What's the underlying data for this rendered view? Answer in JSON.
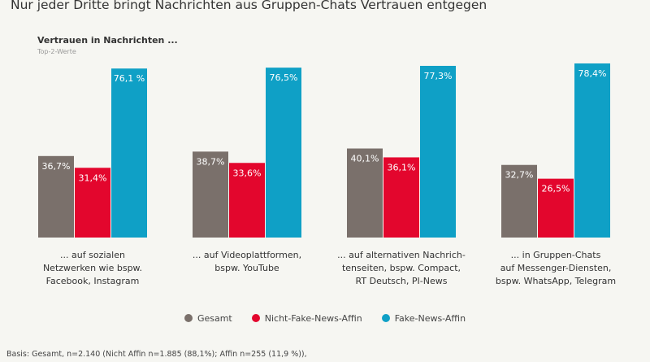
{
  "title": "Nur jeder Dritte bringt Nachrichten aus Gruppen-Chats Vertrauen entgegen",
  "chart_data": {
    "type": "bar",
    "title": "Vertrauen in Nachrichten ...",
    "subtitle": "Top-2-Werte",
    "categories": [
      "... auf sozialen\nNetzwerken wie bspw.\nFacebook, Instagram",
      "... auf Videoplattformen,\nbspw. YouTube",
      "... auf alternativen Nachrich-\ntenseiten, bspw. Compact,\nRT Deutsch, PI-News",
      "... in Gruppen-Chats\nauf Messenger-Diensten,\nbspw. WhatsApp, Telegram"
    ],
    "series": [
      {
        "name": "Gesamt",
        "color": "#7a706b",
        "values": [
          36.7,
          38.7,
          40.1,
          32.7
        ],
        "labels": [
          "36,7%",
          "38,7%",
          "40,1%",
          "32,7%"
        ]
      },
      {
        "name": "Nicht-Fake-News-Affin",
        "color": "#e3062d",
        "values": [
          31.4,
          33.6,
          36.1,
          26.5
        ],
        "labels": [
          "31,4%",
          "33,6%",
          "36,1%",
          "26,5%"
        ]
      },
      {
        "name": "Fake-News-Affin",
        "color": "#0fa0c6",
        "values": [
          76.1,
          76.5,
          77.3,
          78.4
        ],
        "labels": [
          "76,1 %",
          "76,5%",
          "77,3%",
          "78,4%"
        ]
      }
    ],
    "ylim": [
      0,
      80
    ],
    "grid": false,
    "legend": "bottom"
  },
  "note": "Basis: Gesamt, n=2.140 (Nicht Affin n=1.885 (88,1%); Affin n=255 (11,9 %)),"
}
